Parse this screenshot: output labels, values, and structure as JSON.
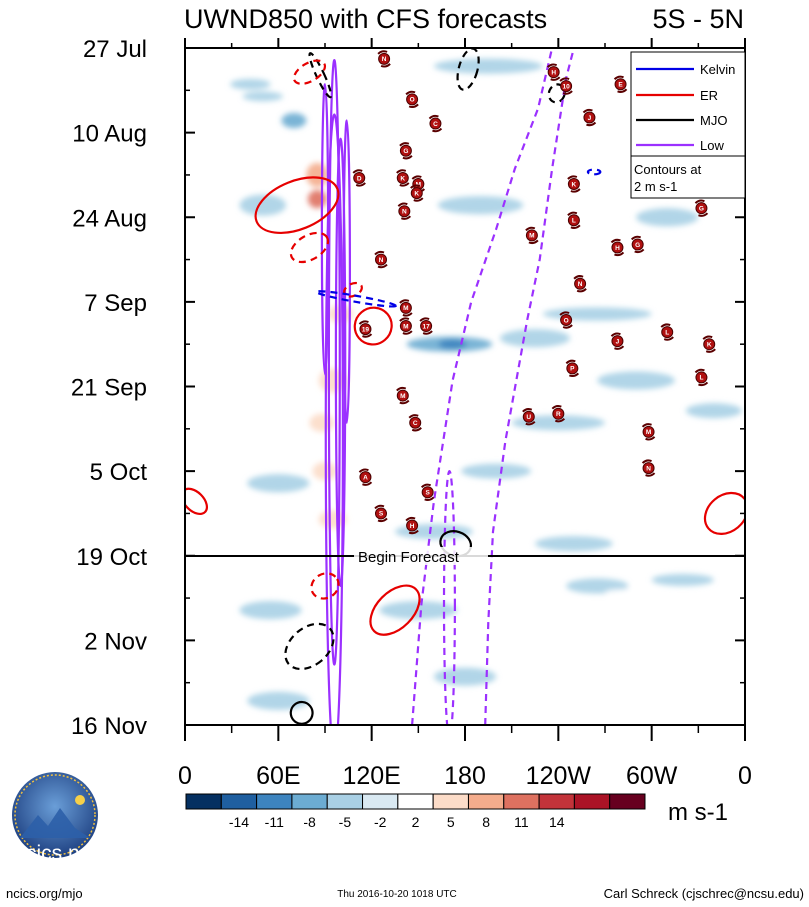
{
  "chart_data": {
    "type": "heatmap",
    "title": "UWND850 with CFS forecasts",
    "region": "5S - 5N",
    "ylabel_dates": [
      "27 Jul",
      "10 Aug",
      "24 Aug",
      "7 Sep",
      "21 Sep",
      "5 Oct",
      "19 Oct",
      "2 Nov",
      "16 Nov"
    ],
    "x_ticks": [
      {
        "lon": 0,
        "label": "0"
      },
      {
        "lon": 60,
        "label": "60E"
      },
      {
        "lon": 120,
        "label": "120E"
      },
      {
        "lon": 180,
        "label": "180"
      },
      {
        "lon": 240,
        "label": "120W"
      },
      {
        "lon": 300,
        "label": "60W"
      },
      {
        "lon": 360,
        "label": "0"
      }
    ],
    "xlim": [
      0,
      360
    ],
    "ylim_days": [
      0,
      112
    ],
    "forecast_start_day": 84,
    "forecast_label": "Begin Forecast",
    "legend": {
      "entries": [
        {
          "name": "Kelvin",
          "color": "#0000e6",
          "style": "solid"
        },
        {
          "name": "ER",
          "color": "#e60000",
          "style": "solid"
        },
        {
          "name": "MJO",
          "color": "#000000",
          "style": "solid"
        },
        {
          "name": "Low",
          "color": "#9b30ff",
          "style": "solid"
        }
      ],
      "note": "Contours at\n2 m s-1",
      "note_line1": "Contours at",
      "note_line2": "2 m s-1"
    },
    "colorbar": {
      "units": "m s-1",
      "tick_labels": [
        "-14",
        "-11",
        "-8",
        "-5",
        "-2",
        "2",
        "5",
        "8",
        "11",
        "14"
      ],
      "colors": [
        "#053061",
        "#1f5fa0",
        "#3d84bf",
        "#6cacd2",
        "#a9d0e5",
        "#d9e9f2",
        "#ffffff",
        "#fcdcc8",
        "#f4ac8c",
        "#de7160",
        "#c3333a",
        "#ab1326",
        "#67001f"
      ]
    },
    "shading_blobs": [
      {
        "lon": 24,
        "day": 2,
        "w": 32,
        "h": 2.5,
        "val": 3
      },
      {
        "lon": 42,
        "day": 6,
        "w": 26,
        "h": 1.8,
        "val": -3
      },
      {
        "lon": 50,
        "day": 8,
        "w": 26,
        "h": 1.6,
        "val": -3
      },
      {
        "lon": 70,
        "day": 12,
        "w": 16,
        "h": 2.5,
        "val": -5
      },
      {
        "lon": 130,
        "day": 2.5,
        "w": 26,
        "h": 2,
        "val": 4
      },
      {
        "lon": 125,
        "day": 9.5,
        "w": 24,
        "h": 1.8,
        "val": 4
      },
      {
        "lon": 147,
        "day": 7.5,
        "w": 18,
        "h": 1.8,
        "val": 3
      },
      {
        "lon": 195,
        "day": 3,
        "w": 70,
        "h": 2.5,
        "val": -4
      },
      {
        "lon": 175,
        "day": 15,
        "w": 40,
        "h": 3,
        "val": 3
      },
      {
        "lon": 215,
        "day": 9,
        "w": 55,
        "h": 2.2,
        "val": 3
      },
      {
        "lon": 260,
        "day": 4,
        "w": 40,
        "h": 2.5,
        "val": 3
      },
      {
        "lon": 300,
        "day": 10,
        "w": 28,
        "h": 2,
        "val": 3
      },
      {
        "lon": 330,
        "day": 7,
        "w": 30,
        "h": 2.5,
        "val": -3
      },
      {
        "lon": 345,
        "day": 20,
        "w": 24,
        "h": 3,
        "val": 3
      },
      {
        "lon": 50,
        "day": 26,
        "w": 30,
        "h": 3.5,
        "val": -4
      },
      {
        "lon": 85,
        "day": 25,
        "w": 12,
        "h": 3,
        "val": 13
      },
      {
        "lon": 85,
        "day": 21,
        "w": 14,
        "h": 4,
        "val": 9
      },
      {
        "lon": 95,
        "day": 30,
        "w": 16,
        "h": 3,
        "val": 5
      },
      {
        "lon": 130,
        "day": 22,
        "w": 48,
        "h": 3,
        "val": 4
      },
      {
        "lon": 148,
        "day": 28,
        "w": 38,
        "h": 2.5,
        "val": 3
      },
      {
        "lon": 190,
        "day": 26,
        "w": 55,
        "h": 3,
        "val": -3
      },
      {
        "lon": 215,
        "day": 33,
        "w": 50,
        "h": 2.5,
        "val": 4
      },
      {
        "lon": 265,
        "day": 25,
        "w": 50,
        "h": 2.2,
        "val": 3
      },
      {
        "lon": 310,
        "day": 28,
        "w": 40,
        "h": 3,
        "val": -3
      },
      {
        "lon": 335,
        "day": 36,
        "w": 40,
        "h": 2.5,
        "val": 3
      },
      {
        "lon": 88,
        "day": 38,
        "w": 14,
        "h": 3.5,
        "val": 5
      },
      {
        "lon": 100,
        "day": 44,
        "w": 16,
        "h": 3,
        "val": 6
      },
      {
        "lon": 140,
        "day": 40,
        "w": 40,
        "h": 2.5,
        "val": 4
      },
      {
        "lon": 170,
        "day": 49,
        "w": 55,
        "h": 2.5,
        "val": -6
      },
      {
        "lon": 172,
        "day": 49,
        "w": 18,
        "h": 1.6,
        "val": -10
      },
      {
        "lon": 225,
        "day": 48,
        "w": 45,
        "h": 3,
        "val": -4
      },
      {
        "lon": 265,
        "day": 44,
        "w": 70,
        "h": 2.2,
        "val": -4
      },
      {
        "lon": 290,
        "day": 55,
        "w": 50,
        "h": 3,
        "val": -4
      },
      {
        "lon": 345,
        "day": 44,
        "w": 28,
        "h": 2.5,
        "val": 4
      },
      {
        "lon": 40,
        "day": 58,
        "w": 40,
        "h": 2.5,
        "val": 3
      },
      {
        "lon": 95,
        "day": 55,
        "w": 18,
        "h": 4,
        "val": 7
      },
      {
        "lon": 88,
        "day": 62,
        "w": 16,
        "h": 3,
        "val": 6
      },
      {
        "lon": 140,
        "day": 58,
        "w": 40,
        "h": 2.5,
        "val": 4
      },
      {
        "lon": 180,
        "day": 64,
        "w": 40,
        "h": 2.5,
        "val": 3
      },
      {
        "lon": 240,
        "day": 62,
        "w": 60,
        "h": 2.5,
        "val": -4
      },
      {
        "lon": 300,
        "day": 66,
        "w": 45,
        "h": 2.5,
        "val": 3
      },
      {
        "lon": 340,
        "day": 60,
        "w": 36,
        "h": 2.5,
        "val": -3
      },
      {
        "lon": 90,
        "day": 70,
        "w": 16,
        "h": 3,
        "val": 6
      },
      {
        "lon": 60,
        "day": 72,
        "w": 40,
        "h": 3,
        "val": -3
      },
      {
        "lon": 140,
        "day": 73,
        "w": 40,
        "h": 2.5,
        "val": 3
      },
      {
        "lon": 200,
        "day": 70,
        "w": 45,
        "h": 2.5,
        "val": -3
      },
      {
        "lon": 255,
        "day": 76,
        "w": 60,
        "h": 3,
        "val": 3
      },
      {
        "lon": 330,
        "day": 74,
        "w": 40,
        "h": 2.5,
        "val": 3
      },
      {
        "lon": 95,
        "day": 78,
        "w": 18,
        "h": 3,
        "val": 7
      },
      {
        "lon": 160,
        "day": 80,
        "w": 50,
        "h": 2.5,
        "val": -3
      },
      {
        "lon": 250,
        "day": 82,
        "w": 50,
        "h": 2.5,
        "val": -4
      },
      {
        "lon": 80,
        "day": 86,
        "w": 40,
        "h": 2.5,
        "val": 4
      },
      {
        "lon": 190,
        "day": 87,
        "w": 55,
        "h": 2.5,
        "val": 4
      },
      {
        "lon": 265,
        "day": 89,
        "w": 40,
        "h": 2.5,
        "val": -4
      },
      {
        "lon": 320,
        "day": 88,
        "w": 40,
        "h": 2,
        "val": -3
      },
      {
        "lon": 55,
        "day": 93,
        "w": 40,
        "h": 3,
        "val": -4
      },
      {
        "lon": 150,
        "day": 93,
        "w": 50,
        "h": 3,
        "val": -4
      },
      {
        "lon": 140,
        "day": 98,
        "w": 50,
        "h": 2.5,
        "val": 3
      },
      {
        "lon": 220,
        "day": 95,
        "w": 50,
        "h": 2.5,
        "val": 3
      },
      {
        "lon": 300,
        "day": 96,
        "w": 50,
        "h": 2.5,
        "val": 3
      },
      {
        "lon": 285,
        "day": 90,
        "w": 30,
        "h": 1,
        "val": 3
      },
      {
        "lon": 110,
        "day": 103,
        "w": 40,
        "h": 3,
        "val": 3
      },
      {
        "lon": 180,
        "day": 104,
        "w": 40,
        "h": 3,
        "val": -3
      },
      {
        "lon": 250,
        "day": 106,
        "w": 60,
        "h": 2.5,
        "val": 3
      },
      {
        "lon": 60,
        "day": 108,
        "w": 40,
        "h": 3,
        "val": -3
      },
      {
        "lon": 320,
        "day": 107,
        "w": 40,
        "h": 2.5,
        "val": 3
      }
    ],
    "contours": [
      {
        "type": "Low",
        "color": "#9b30ff",
        "dash": false,
        "cx": 96,
        "cy": 64,
        "rx": 5.5,
        "ry": 53,
        "rot": 0
      },
      {
        "type": "Low",
        "color": "#9b30ff",
        "dash": false,
        "cx": 96,
        "cy": 52,
        "rx": 3.5,
        "ry": 50,
        "rot": 0
      },
      {
        "type": "Low",
        "color": "#9b30ff",
        "dash": false,
        "cx": 90,
        "cy": 30,
        "rx": 2,
        "ry": 24,
        "rot": 0
      },
      {
        "type": "Low",
        "color": "#9b30ff",
        "dash": false,
        "cx": 100,
        "cy": 52,
        "rx": 3,
        "ry": 37,
        "rot": 0
      },
      {
        "type": "Low",
        "color": "#9b30ff",
        "dash": false,
        "cx": 104,
        "cy": 37,
        "rx": 2,
        "ry": 25,
        "rot": 0
      },
      {
        "type": "Low",
        "color": "#9b30ff",
        "dash": true,
        "cx": 170,
        "cy": 92,
        "rx": 3.5,
        "ry": 22,
        "rot": 0
      },
      {
        "type": "MJO",
        "color": "#000000",
        "dash": true,
        "cx": 182,
        "cy": 3.5,
        "rx": 6,
        "ry": 3.5,
        "rot": 15
      },
      {
        "type": "MJO",
        "color": "#000000",
        "dash": true,
        "cx": 87,
        "cy": 4.5,
        "rx": 2.5,
        "ry": 4,
        "rot": -25
      },
      {
        "type": "MJO",
        "color": "#000000",
        "dash": true,
        "cx": 239,
        "cy": 7.5,
        "rx": 5,
        "ry": 1.5,
        "rot": 20
      },
      {
        "type": "MJO",
        "color": "#000000",
        "dash": false,
        "cx": 174,
        "cy": 82,
        "rx": 10,
        "ry": 2,
        "rot": 18
      },
      {
        "type": "MJO",
        "color": "#000000",
        "dash": true,
        "cx": 80,
        "cy": 99,
        "rx": 12,
        "ry": 4.5,
        "rot": 50
      },
      {
        "type": "MJO",
        "color": "#000000",
        "dash": false,
        "cx": 75,
        "cy": 110,
        "rx": 7,
        "ry": 1.8,
        "rot": 50
      },
      {
        "type": "ER",
        "color": "#e60000",
        "dash": false,
        "cx": 72,
        "cy": 26,
        "rx": 28,
        "ry": 4,
        "rot": -22
      },
      {
        "type": "ER",
        "color": "#e60000",
        "dash": true,
        "cx": 80,
        "cy": 33,
        "rx": 13,
        "ry": 2,
        "rot": -30
      },
      {
        "type": "ER",
        "color": "#e60000",
        "dash": true,
        "cx": 80,
        "cy": 4,
        "rx": 11,
        "ry": 1.5,
        "rot": -30
      },
      {
        "type": "ER",
        "color": "#e60000",
        "dash": true,
        "cx": 108,
        "cy": 40,
        "rx": 6,
        "ry": 1,
        "rot": -25
      },
      {
        "type": "ER",
        "color": "#e60000",
        "dash": false,
        "cx": 121,
        "cy": 46,
        "rx": 12,
        "ry": 3,
        "rot": -40
      },
      {
        "type": "ER",
        "color": "#e60000",
        "dash": false,
        "cx": 6,
        "cy": 75,
        "rx": 6,
        "ry": 2.5,
        "rot": -45
      },
      {
        "type": "ER",
        "color": "#e60000",
        "dash": false,
        "cx": 348,
        "cy": 77,
        "rx": 15,
        "ry": 3,
        "rot": -40
      },
      {
        "type": "ER",
        "color": "#e60000",
        "dash": true,
        "cx": 90,
        "cy": 89,
        "rx": 9,
        "ry": 2,
        "rot": -30
      },
      {
        "type": "ER",
        "color": "#e60000",
        "dash": false,
        "cx": 135,
        "cy": 93,
        "rx": 19,
        "ry": 3,
        "rot": -45
      },
      {
        "type": "Kelvin",
        "color": "#0000e6",
        "dash": true,
        "cx": 110,
        "cy": 41.5,
        "rx": 26,
        "ry": 0.5,
        "rot": 10
      },
      {
        "type": "Kelvin",
        "color": "#0000e6",
        "dash": true,
        "cx": 263,
        "cy": 20.5,
        "rx": 4,
        "ry": 0.4,
        "rot": 0
      }
    ],
    "low_dashed_paths": [
      {
        "color": "#9b30ff",
        "points": [
          [
            193,
            112
          ],
          [
            195,
            95
          ],
          [
            198,
            80
          ],
          [
            206,
            65
          ],
          [
            220,
            45
          ],
          [
            228,
            35
          ],
          [
            236,
            20
          ],
          [
            245,
            5
          ],
          [
            250,
            0
          ]
        ]
      },
      {
        "color": "#9b30ff",
        "points": [
          [
            146,
            112
          ],
          [
            152,
            92
          ],
          [
            160,
            75
          ],
          [
            172,
            55
          ],
          [
            184,
            42
          ],
          [
            200,
            30
          ],
          [
            212,
            20
          ],
          [
            227,
            10
          ],
          [
            236,
            0
          ]
        ]
      }
    ],
    "storm_markers": [
      {
        "label": "N",
        "lon": 128,
        "day": 1.8
      },
      {
        "label": "O",
        "lon": 146,
        "day": 8.5
      },
      {
        "label": "C",
        "lon": 161,
        "day": 12.5
      },
      {
        "label": "G",
        "lon": 142,
        "day": 17
      },
      {
        "label": "D",
        "lon": 112,
        "day": 21.5
      },
      {
        "label": "K",
        "lon": 140,
        "day": 21.5
      },
      {
        "label": "M",
        "lon": 150,
        "day": 22.5
      },
      {
        "label": "K",
        "lon": 149,
        "day": 24
      },
      {
        "label": "N",
        "lon": 141,
        "day": 27
      },
      {
        "label": "N",
        "lon": 126,
        "day": 35
      },
      {
        "label": "M",
        "lon": 142,
        "day": 43
      },
      {
        "label": "M",
        "lon": 142,
        "day": 46
      },
      {
        "label": "17",
        "lon": 155,
        "day": 46
      },
      {
        "label": "19",
        "lon": 116,
        "day": 46.5
      },
      {
        "label": "M",
        "lon": 140,
        "day": 57.5
      },
      {
        "label": "C",
        "lon": 148,
        "day": 62
      },
      {
        "label": "A",
        "lon": 116,
        "day": 71
      },
      {
        "label": "S",
        "lon": 156,
        "day": 73.5
      },
      {
        "label": "S",
        "lon": 126,
        "day": 77
      },
      {
        "label": "H",
        "lon": 146,
        "day": 79
      },
      {
        "label": "H",
        "lon": 237,
        "day": 4
      },
      {
        "label": "10",
        "lon": 245,
        "day": 6.3
      },
      {
        "label": "E",
        "lon": 280,
        "day": 6
      },
      {
        "label": "J",
        "lon": 260,
        "day": 11.5
      },
      {
        "label": "K",
        "lon": 250,
        "day": 22.5
      },
      {
        "label": "L",
        "lon": 250,
        "day": 28.5
      },
      {
        "label": "M",
        "lon": 223,
        "day": 31
      },
      {
        "label": "H",
        "lon": 278,
        "day": 33
      },
      {
        "label": "G",
        "lon": 291,
        "day": 32.5
      },
      {
        "label": "N",
        "lon": 254,
        "day": 39
      },
      {
        "label": "O",
        "lon": 245,
        "day": 45
      },
      {
        "label": "J",
        "lon": 278,
        "day": 48.5
      },
      {
        "label": "L",
        "lon": 310,
        "day": 47
      },
      {
        "label": "K",
        "lon": 337,
        "day": 49
      },
      {
        "label": "P",
        "lon": 249,
        "day": 53
      },
      {
        "label": "L",
        "lon": 332,
        "day": 54.5
      },
      {
        "label": "U",
        "lon": 221,
        "day": 61
      },
      {
        "label": "R",
        "lon": 240,
        "day": 60.5
      },
      {
        "label": "M",
        "lon": 298,
        "day": 63.5
      },
      {
        "label": "N",
        "lon": 298,
        "day": 69.5
      },
      {
        "label": "G",
        "lon": 332,
        "day": 26.5
      }
    ]
  },
  "footer": {
    "left": "ncics.org/mjo",
    "center": "Thu 2016-10-20 1018 UTC",
    "right": "Carl Schreck (cjschrec@ncsu.edu)",
    "logo_text": "cics.nc",
    "logo_ring": "Cooperative Institute for Climate and Satellites"
  }
}
